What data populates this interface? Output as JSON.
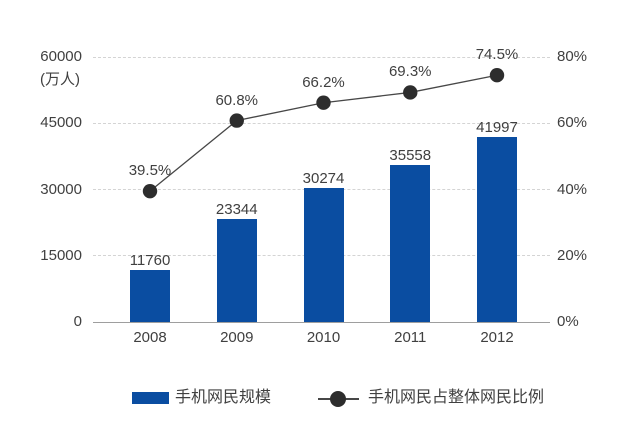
{
  "chart_data": {
    "type": "bar",
    "subtype": "bar-line-combo",
    "categories": [
      "2008",
      "2009",
      "2010",
      "2011",
      "2012"
    ],
    "series": [
      {
        "name": "手机网民规模",
        "type": "bar",
        "axis": "left",
        "unit": "万人",
        "values": [
          11760,
          23344,
          30274,
          35558,
          41997
        ],
        "value_labels": [
          "11760",
          "23344",
          "30274",
          "35558",
          "41997"
        ],
        "color": "#0a4da1"
      },
      {
        "name": "手机网民占整体网民比例",
        "type": "line",
        "axis": "right",
        "unit": "%",
        "values": [
          39.5,
          60.8,
          66.2,
          69.3,
          74.5
        ],
        "value_labels": [
          "39.5%",
          "60.8%",
          "66.2%",
          "69.3%",
          "74.5%"
        ],
        "color": "#2d2d2d"
      }
    ],
    "left_axis": {
      "unit_label": "(万人)",
      "ticks": [
        0,
        15000,
        30000,
        45000,
        60000
      ],
      "tick_labels": [
        "0",
        "15000",
        "30000",
        "45000",
        "60000"
      ],
      "min": 0,
      "max": 60000
    },
    "right_axis": {
      "ticks": [
        0,
        20,
        40,
        60,
        80
      ],
      "tick_labels": [
        "0%",
        "20%",
        "40%",
        "60%",
        "80%"
      ],
      "min": 0,
      "max": 80
    },
    "grid": "horizontal-dashed",
    "legend_position": "bottom",
    "title": ""
  },
  "legend": {
    "bar_label": "手机网民规模",
    "line_label": "手机网民占整体网民比例"
  },
  "colors": {
    "bar": "#0a4da1",
    "line": "#474747",
    "marker": "#2d2d2d",
    "grid": "#d4d4d4",
    "axis_line": "#9e9e9e",
    "text": "#404040",
    "background": "#ffffff"
  }
}
